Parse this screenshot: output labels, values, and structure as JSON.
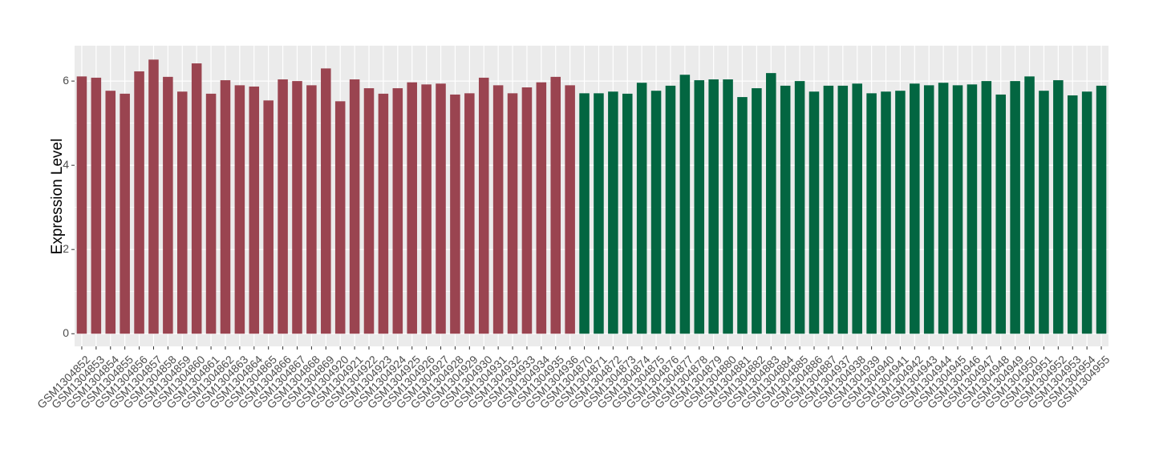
{
  "chart_data": {
    "type": "bar",
    "y_label": "Expression Level",
    "categories": [
      "GSM1304852",
      "GSM1304853",
      "GSM1304854",
      "GSM1304855",
      "GSM1304856",
      "GSM1304857",
      "GSM1304858",
      "GSM1304859",
      "GSM1304860",
      "GSM1304861",
      "GSM1304862",
      "GSM1304863",
      "GSM1304864",
      "GSM1304865",
      "GSM1304866",
      "GSM1304867",
      "GSM1304868",
      "GSM1304869",
      "GSM1304920",
      "GSM1304921",
      "GSM1304922",
      "GSM1304923",
      "GSM1304924",
      "GSM1304925",
      "GSM1304926",
      "GSM1304927",
      "GSM1304928",
      "GSM1304929",
      "GSM1304930",
      "GSM1304931",
      "GSM1304932",
      "GSM1304933",
      "GSM1304934",
      "GSM1304935",
      "GSM1304936",
      "GSM1304870",
      "GSM1304871",
      "GSM1304872",
      "GSM1304873",
      "GSM1304874",
      "GSM1304875",
      "GSM1304876",
      "GSM1304877",
      "GSM1304878",
      "GSM1304879",
      "GSM1304880",
      "GSM1304881",
      "GSM1304882",
      "GSM1304883",
      "GSM1304884",
      "GSM1304885",
      "GSM1304886",
      "GSM1304887",
      "GSM1304937",
      "GSM1304938",
      "GSM1304939",
      "GSM1304940",
      "GSM1304941",
      "GSM1304942",
      "GSM1304943",
      "GSM1304944",
      "GSM1304945",
      "GSM1304946",
      "GSM1304947",
      "GSM1304948",
      "GSM1304949",
      "GSM1304950",
      "GSM1304951",
      "GSM1304952",
      "GSM1304953",
      "GSM1304954",
      "GSM1304955"
    ],
    "values": [
      6.11,
      6.08,
      5.77,
      5.7,
      6.23,
      6.51,
      6.1,
      5.75,
      6.42,
      5.7,
      6.02,
      5.9,
      5.87,
      5.54,
      6.04,
      6.0,
      5.9,
      6.3,
      5.52,
      6.04,
      5.83,
      5.7,
      5.83,
      5.97,
      5.92,
      5.94,
      5.68,
      5.71,
      6.08,
      5.9,
      5.71,
      5.85,
      5.97,
      6.1,
      5.9,
      5.71,
      5.71,
      5.75,
      5.7,
      5.96,
      5.77,
      5.89,
      6.15,
      6.02,
      6.04,
      6.04,
      5.62,
      5.83,
      6.19,
      5.89,
      6.0,
      5.75,
      5.89,
      5.89,
      5.94,
      5.71,
      5.75,
      5.77,
      5.94,
      5.9,
      5.96,
      5.9,
      5.92,
      6.0,
      5.68,
      6.0,
      6.11,
      5.77,
      6.02,
      5.66,
      5.75,
      5.89
    ],
    "colors": [
      "#9a4450",
      "#9a4450",
      "#9a4450",
      "#9a4450",
      "#9a4450",
      "#9a4450",
      "#9a4450",
      "#9a4450",
      "#9a4450",
      "#9a4450",
      "#9a4450",
      "#9a4450",
      "#9a4450",
      "#9a4450",
      "#9a4450",
      "#9a4450",
      "#9a4450",
      "#9a4450",
      "#9a4450",
      "#9a4450",
      "#9a4450",
      "#9a4450",
      "#9a4450",
      "#9a4450",
      "#9a4450",
      "#9a4450",
      "#9a4450",
      "#9a4450",
      "#9a4450",
      "#9a4450",
      "#9a4450",
      "#9a4450",
      "#9a4450",
      "#9a4450",
      "#9a4450",
      "#036641",
      "#036641",
      "#036641",
      "#036641",
      "#036641",
      "#036641",
      "#036641",
      "#036641",
      "#036641",
      "#036641",
      "#036641",
      "#036641",
      "#036641",
      "#036641",
      "#036641",
      "#036641",
      "#036641",
      "#036641",
      "#036641",
      "#036641",
      "#036641",
      "#036641",
      "#036641",
      "#036641",
      "#036641",
      "#036641",
      "#036641",
      "#036641",
      "#036641",
      "#036641",
      "#036641",
      "#036641",
      "#036641",
      "#036641",
      "#036641",
      "#036641",
      "#036641"
    ],
    "ylim": [
      -0.3,
      6.84
    ],
    "yticks": [
      0,
      2,
      4,
      6
    ],
    "grid": true
  }
}
